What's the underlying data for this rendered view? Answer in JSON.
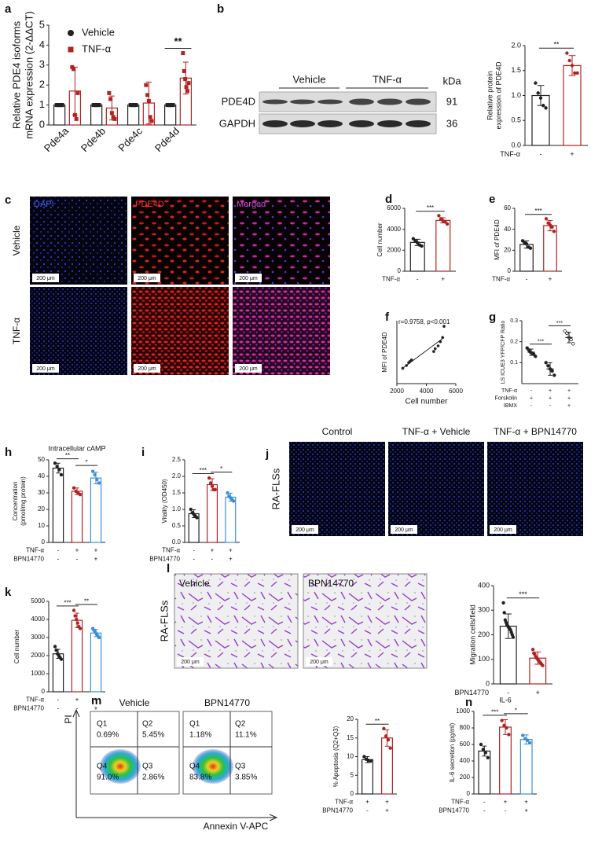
{
  "chart_data": [
    {
      "type": "bar",
      "panel": "a",
      "ylabel": [
        "Relative PDE4 isoforms",
        "mRNA expression (2-ΔΔCT)"
      ],
      "categories": [
        "Pde4a",
        "Pde4b",
        "Pde4c",
        "Pde4d"
      ],
      "series": [
        {
          "name": "Vehicle",
          "color": "#222222",
          "values": [
            1,
            1,
            1,
            1
          ],
          "points": [
            [
              1,
              1,
              1,
              1,
              1
            ],
            [
              1,
              1,
              1,
              1,
              1
            ],
            [
              1,
              1,
              1,
              1,
              1
            ],
            [
              1,
              1,
              1,
              1,
              1
            ]
          ]
        },
        {
          "name": "TNF-α",
          "color": "#b22222",
          "values": [
            1.7,
            0.85,
            1.1,
            2.35
          ],
          "errors": [
            1.2,
            0.6,
            1.05,
            0.8
          ],
          "points": [
            [
              2.9,
              2.8,
              0.5,
              0.3,
              1.6
            ],
            [
              1.6,
              1.3,
              0.6,
              0.4,
              0.3
            ],
            [
              2.0,
              1.5,
              1.2,
              0.4,
              0.2
            ],
            [
              3.6,
              2.7,
              2.3,
              1.9,
              1.7,
              2.1
            ]
          ]
        }
      ],
      "sig": [
        null,
        null,
        null,
        "**"
      ],
      "ylim": [
        0,
        5
      ],
      "yticks": [
        0,
        1,
        2,
        3,
        4,
        5
      ]
    },
    {
      "type": "bar",
      "ylabel": [
        "Relative protein",
        "expression of PDE4D"
      ],
      "values": [
        1.0,
        1.6
      ],
      "errors": [
        0.2,
        0.2
      ],
      "points": [
        [
          1.25,
          1.05,
          0.95,
          0.8,
          0.75
        ],
        [
          1.85,
          1.7,
          1.6,
          1.45,
          1.45
        ]
      ],
      "colors": [
        "#222222",
        "#b22222"
      ],
      "conditions": [
        {
          "name": "TNF-α",
          "signs": [
            "-",
            "+"
          ]
        }
      ],
      "sig": [
        "**"
      ],
      "ylim": [
        0,
        2
      ],
      "yticks": [
        {
          "value": 0,
          "label": "0.0"
        },
        0.5,
        {
          "value": 1,
          "label": "1.0"
        },
        1.5,
        {
          "value": 2,
          "label": "2.0"
        }
      ]
    },
    {
      "type": "bar",
      "panel": "d",
      "ylabel": "Cell number",
      "values": [
        2750,
        4850
      ],
      "errors": [
        300,
        250
      ],
      "points": [
        [
          3100,
          2900,
          2700,
          2500,
          2400
        ],
        [
          5300,
          5000,
          4800,
          4700,
          4500
        ]
      ],
      "colors": [
        "#222222",
        "#b22222"
      ],
      "conditions": [
        {
          "name": "TNF-α",
          "signs": [
            "-",
            "+"
          ]
        }
      ],
      "sig": [
        "***"
      ],
      "ylim": [
        0,
        6000
      ],
      "yticks": [
        0,
        2000,
        4000,
        6000
      ]
    },
    {
      "type": "bar",
      "panel": "e",
      "ylabel": "MFI of PDE4D",
      "values": [
        25.5,
        43.5
      ],
      "errors": [
        3.5,
        5
      ],
      "points": [
        [
          29,
          27,
          26,
          23,
          22
        ],
        [
          50,
          46,
          44,
          42,
          38
        ]
      ],
      "colors": [
        "#222222",
        "#b22222"
      ],
      "conditions": [
        {
          "name": "TNF-α",
          "signs": [
            "-",
            "+"
          ]
        }
      ],
      "sig": [
        "***"
      ],
      "ylim": [
        0,
        60
      ],
      "yticks": [
        0,
        20,
        40,
        60
      ]
    },
    {
      "type": "scatter",
      "panel": "f",
      "xlabel": "Cell number",
      "ylabel": "MFI of PDE4D",
      "annotation": "r=0.9758, p<0.001",
      "color": "#222222",
      "x": [
        2400,
        2650,
        2800,
        2900,
        3000,
        4500,
        4600,
        4800,
        4950,
        5100,
        5200
      ],
      "y": [
        21,
        23,
        25,
        26,
        27,
        33,
        35,
        37,
        40,
        43,
        51
      ],
      "xlim": [
        2000,
        6000
      ],
      "xticks": [
        2000,
        4000,
        6000
      ],
      "ylim": [
        10,
        55
      ]
    },
    {
      "type": "dot",
      "panel": "g",
      "ylabel": "LS ICUE3 YFP/CFP Ratio",
      "values": [
        0.15,
        0.07,
        0.22
      ],
      "errors": [
        0.015,
        0.03,
        0.025
      ],
      "points": [
        [
          0.17,
          0.16,
          0.15,
          0.145,
          0.14,
          0.13
        ],
        [
          0.1,
          0.085,
          0.07,
          0.06,
          0.04
        ],
        [
          0.25,
          0.24,
          0.22,
          0.21,
          0.19
        ]
      ],
      "colors": [
        "#222222",
        "#222222",
        "#222222"
      ],
      "conditions": [
        {
          "name": "TNF-α",
          "signs": [
            "-",
            "+",
            "+"
          ]
        },
        {
          "name": "Forskolin",
          "signs": [
            "+",
            "+",
            "+"
          ]
        },
        {
          "name": "IBMX",
          "signs": [
            "-",
            "-",
            "+"
          ]
        }
      ],
      "sig": [
        "***",
        "***"
      ],
      "ylim": [
        0,
        0.3
      ],
      "yticks": [
        0.1,
        0.2,
        0.3
      ]
    },
    {
      "type": "bar",
      "panel": "h",
      "title": "Intracellular cAMP",
      "ylabel": [
        "Concentration",
        "(pmol/mg protein)"
      ],
      "values": [
        45,
        31,
        39
      ],
      "errors": [
        3,
        2,
        3.5
      ],
      "points": [
        [
          48,
          46,
          44,
          41
        ],
        [
          33,
          31,
          30,
          29
        ],
        [
          43,
          41,
          38,
          36
        ]
      ],
      "colors": [
        "#222222",
        "#b22222",
        "#3b8fd9"
      ],
      "conditions": [
        {
          "name": "TNF-α",
          "signs": [
            "-",
            "+",
            "+"
          ]
        },
        {
          "name": "BPN14770",
          "signs": [
            "-",
            "-",
            "+"
          ]
        }
      ],
      "sig": [
        "**",
        "*"
      ],
      "ylim": [
        0,
        50
      ],
      "yticks": [
        0,
        10,
        20,
        30,
        40,
        50
      ]
    },
    {
      "type": "bar",
      "panel": "i",
      "ylabel": "Vitality (OD450)",
      "values": [
        0.87,
        1.75,
        1.37
      ],
      "errors": [
        0.12,
        0.18,
        0.12
      ],
      "points": [
        [
          1.0,
          0.9,
          0.85,
          0.8,
          0.75
        ],
        [
          1.95,
          1.8,
          1.7,
          1.6,
          1.6
        ],
        [
          1.5,
          1.4,
          1.35,
          1.3,
          1.25
        ]
      ],
      "colors": [
        "#222222",
        "#b22222",
        "#3b8fd9"
      ],
      "conditions": [
        {
          "name": "TNF-α",
          "signs": [
            "-",
            "+",
            "+"
          ]
        },
        {
          "name": "BPN14770",
          "signs": [
            "-",
            "-",
            "+"
          ]
        }
      ],
      "sig": [
        "***",
        "*"
      ],
      "ylim": [
        0,
        2.5
      ],
      "yticks": [
        {
          "value": 0,
          "label": "0.0"
        },
        0.5,
        {
          "value": 1,
          "label": "1.0"
        },
        1.5,
        {
          "value": 2,
          "label": "2.0"
        },
        2.5
      ]
    },
    {
      "type": "bar",
      "panel": "k",
      "ylabel": "Cell number",
      "values": [
        2100,
        3950,
        3250
      ],
      "errors": [
        250,
        400,
        200
      ],
      "points": [
        [
          2500,
          2300,
          2100,
          2000,
          1900,
          1800
        ],
        [
          4500,
          4200,
          4000,
          3800,
          3600,
          3500
        ],
        [
          3500,
          3400,
          3300,
          3200,
          3100,
          3000
        ]
      ],
      "colors": [
        "#222222",
        "#b22222",
        "#3b8fd9"
      ],
      "conditions": [
        {
          "name": "TNF-α",
          "signs": [
            "-",
            "+",
            "+"
          ]
        },
        {
          "name": "BPN14770",
          "signs": [
            "-",
            "-",
            "+"
          ]
        }
      ],
      "sig": [
        "***",
        "**"
      ],
      "ylim": [
        0,
        5000
      ],
      "yticks": [
        0,
        1000,
        2000,
        3000,
        4000,
        5000
      ]
    },
    {
      "type": "bar",
      "ylabel": "Migration cells/field",
      "values": [
        235,
        105
      ],
      "errors": [
        50,
        25
      ],
      "points": [
        [
          330,
          290,
          260,
          250,
          240,
          235,
          230,
          225,
          220,
          210,
          200,
          190
        ],
        [
          140,
          125,
          120,
          110,
          105,
          100,
          95,
          90,
          85,
          80,
          75
        ]
      ],
      "colors": [
        "#222222",
        "#b22222"
      ],
      "conditions": [
        {
          "name": "BPN14770",
          "signs": [
            "-",
            "+"
          ]
        }
      ],
      "sig": [
        "***"
      ],
      "ylim": [
        0,
        400
      ],
      "yticks": [
        0,
        100,
        200,
        300,
        400
      ]
    },
    {
      "type": "bar",
      "ylabel": "% Apoptosis (Q2+Q3)",
      "values": [
        9.2,
        15.0
      ],
      "errors": [
        0.8,
        2.2
      ],
      "points": [
        [
          10,
          9.3,
          9,
          8.8
        ],
        [
          17.5,
          15.5,
          14.5,
          12.3
        ]
      ],
      "colors": [
        "#222222",
        "#b22222"
      ],
      "conditions": [
        {
          "name": "TNF-α",
          "signs": [
            "+",
            "+"
          ]
        },
        {
          "name": "BPN14770",
          "signs": [
            "-",
            "+"
          ]
        }
      ],
      "sig": [
        "**"
      ],
      "ylim": [
        0,
        20
      ],
      "yticks": [
        0,
        5,
        10,
        15,
        20
      ]
    },
    {
      "type": "bar",
      "panel": "n",
      "title": "IL-6",
      "ylabel": "IL-6 secretion (pg/ml)",
      "values": [
        520,
        810,
        660
      ],
      "errors": [
        60,
        90,
        55
      ],
      "points": [
        [
          600,
          540,
          500,
          440
        ],
        [
          890,
          830,
          800,
          720
        ],
        [
          710,
          670,
          650,
          620
        ]
      ],
      "colors": [
        "#222222",
        "#b22222",
        "#3b8fd9"
      ],
      "conditions": [
        {
          "name": "TNF-α",
          "signs": [
            "-",
            "+",
            "+"
          ]
        },
        {
          "name": "BPN14770",
          "signs": [
            "-",
            "-",
            "+"
          ]
        }
      ],
      "sig": [
        "***",
        "*"
      ],
      "ylim": [
        0,
        1000
      ],
      "yticks": [
        0,
        200,
        400,
        600,
        800,
        1000
      ]
    }
  ],
  "figure": {
    "b_blot": {
      "panel": "b",
      "groups": [
        "Vehicle",
        "TNF-α"
      ],
      "unit": "kDa",
      "rows": [
        {
          "name": "PDE4D",
          "size": "91"
        },
        {
          "name": "GAPDH",
          "size": "36"
        }
      ]
    },
    "c_images": {
      "panel": "c",
      "channels": [
        "DAPI",
        "PDE4D",
        "Merged"
      ],
      "rows": [
        "Vehicle",
        "TNF-α"
      ],
      "scale": "200 μm"
    },
    "j_images": {
      "panel": "j",
      "columns": [
        "Control",
        "TNF-α + Vehicle",
        "TNF-α + BPN14770"
      ],
      "row": "RA-FLSs",
      "scale": "200 μm"
    },
    "l_images": {
      "panel": "l",
      "columns": [
        "Vehicle",
        "BPN14770"
      ],
      "row": "RA-FLSs",
      "scale": "200 μm"
    },
    "m_flow": {
      "panel": "m",
      "yaxis": "PI",
      "xaxis": "Annexin V-APC",
      "plots": [
        {
          "title": "Vehicle",
          "quadrants": [
            {
              "name": "Q1",
              "value": "0.69%"
            },
            {
              "name": "Q2",
              "value": "5.45%"
            },
            {
              "name": "Q4",
              "value": "91.0%"
            },
            {
              "name": "Q3",
              "value": "2.86%"
            }
          ]
        },
        {
          "title": "BPN14770",
          "quadrants": [
            {
              "name": "Q1",
              "value": "1.18%"
            },
            {
              "name": "Q2",
              "value": "11.1%"
            },
            {
              "name": "Q4",
              "value": "83.8%"
            },
            {
              "name": "Q3",
              "value": "3.85%"
            }
          ]
        }
      ]
    }
  }
}
